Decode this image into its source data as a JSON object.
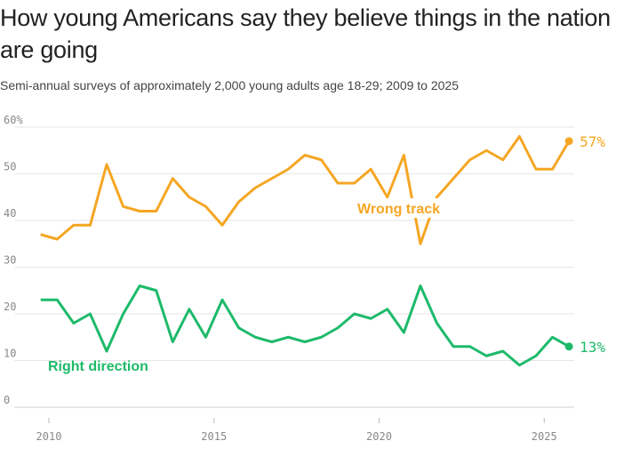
{
  "title": "How young Americans say they believe things in the nation are going",
  "subtitle": "Semi-annual surveys of approximately 2,000 young adults age 18-29; 2009 to 2025",
  "chart_data": {
    "type": "line",
    "title": "How young Americans say they believe things in the nation are going",
    "subtitle": "Semi-annual surveys of approximately 2,000 young adults age 18-29; 2009 to 2025",
    "x": [
      2009.75,
      2010.25,
      2010.75,
      2011.25,
      2011.75,
      2012.25,
      2012.75,
      2013.25,
      2013.75,
      2014.25,
      2014.75,
      2015.25,
      2015.75,
      2016.25,
      2016.75,
      2017.25,
      2017.75,
      2018.25,
      2018.75,
      2019.25,
      2019.75,
      2020.25,
      2020.75,
      2021.25,
      2021.75,
      2022.25,
      2022.75,
      2023.25,
      2023.75,
      2024.25,
      2024.75,
      2025.25,
      2025.75
    ],
    "series": [
      {
        "name": "Wrong track",
        "color": "#f5a623",
        "end_label": "57%",
        "values": [
          37,
          36,
          39,
          39,
          52,
          43,
          42,
          42,
          49,
          45,
          43,
          39,
          44,
          47,
          49,
          51,
          54,
          53,
          48,
          48,
          51,
          45,
          54,
          35,
          45,
          49,
          53,
          55,
          53,
          58,
          51,
          51,
          57
        ]
      },
      {
        "name": "Right direction",
        "color": "#1dba6a",
        "end_label": "13%",
        "values": [
          23,
          23,
          18,
          20,
          12,
          20,
          26,
          25,
          14,
          21,
          15,
          23,
          17,
          15,
          14,
          15,
          14,
          15,
          17,
          20,
          19,
          21,
          16,
          26,
          18,
          13,
          13,
          11,
          12,
          9,
          11,
          15,
          13
        ]
      }
    ],
    "xlim": [
      2009.5,
      2025.9
    ],
    "ylim": [
      0,
      60
    ],
    "x_ticks": [
      2010,
      2015,
      2020,
      2025
    ],
    "x_tick_labels": [
      "2010",
      "2015",
      "2020",
      "2025"
    ],
    "y_ticks": [
      0,
      10,
      20,
      30,
      40,
      50,
      60
    ],
    "y_tick_labels": [
      "0",
      "10",
      "20",
      "30",
      "40",
      "50",
      "60%"
    ],
    "grid": true,
    "legend": "inline labels"
  }
}
